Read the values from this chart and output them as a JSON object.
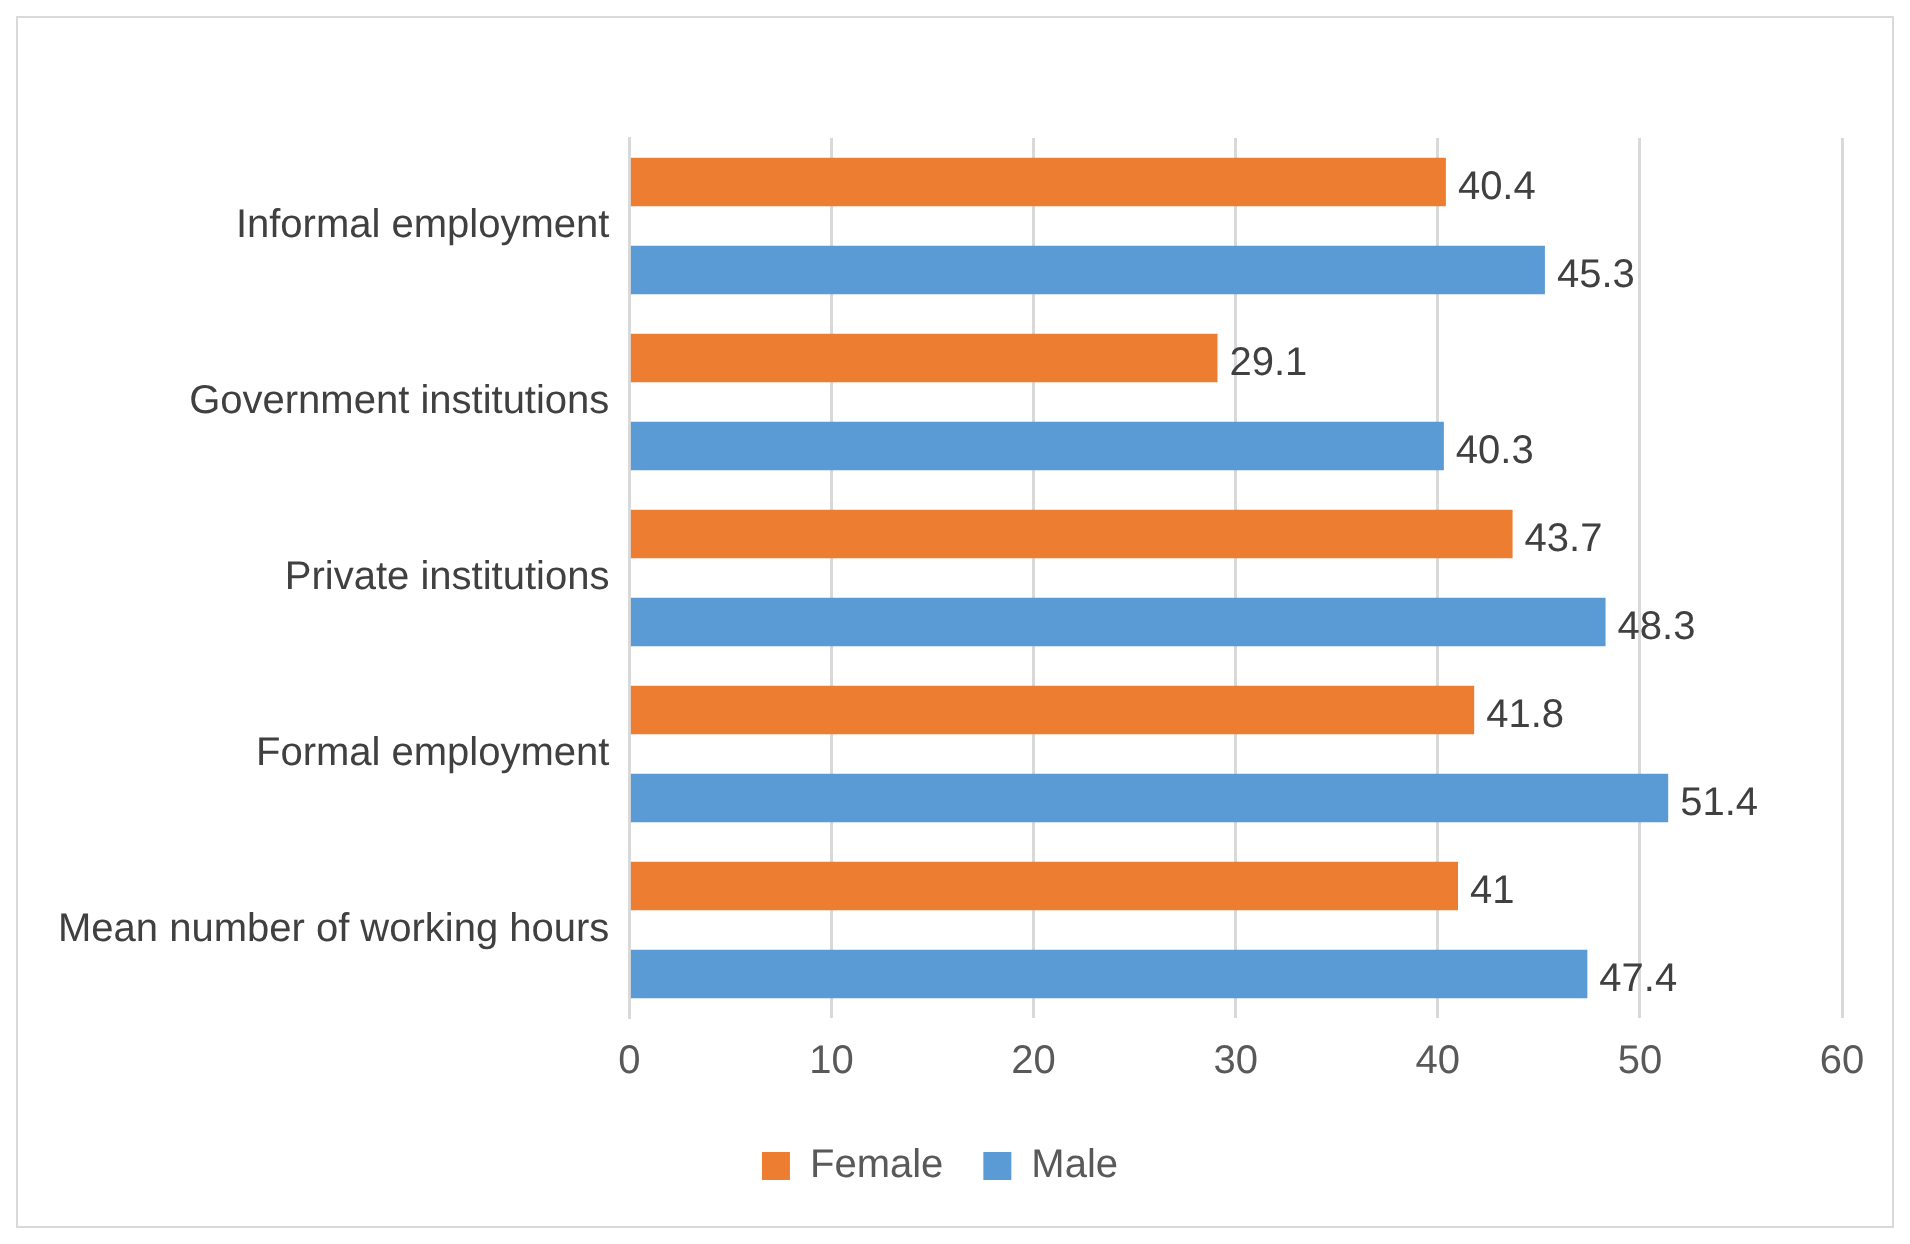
{
  "chart_data": {
    "type": "bar",
    "orientation": "horizontal",
    "categories": [
      "Informal employment",
      "Government institutions",
      "Private institutions",
      "Formal employment",
      "Mean number of working hours"
    ],
    "series": [
      {
        "name": "Female",
        "color": "#ed7d31",
        "values": [
          40.4,
          29.1,
          43.7,
          41.8,
          41
        ]
      },
      {
        "name": "Male",
        "color": "#5b9bd5",
        "values": [
          45.3,
          40.3,
          48.3,
          51.4,
          47.4
        ]
      }
    ],
    "xlim": [
      0,
      60
    ],
    "xticks": [
      0,
      10,
      20,
      30,
      40,
      50,
      60
    ],
    "grid": "x",
    "legend": "bottom",
    "data_labels": true
  }
}
